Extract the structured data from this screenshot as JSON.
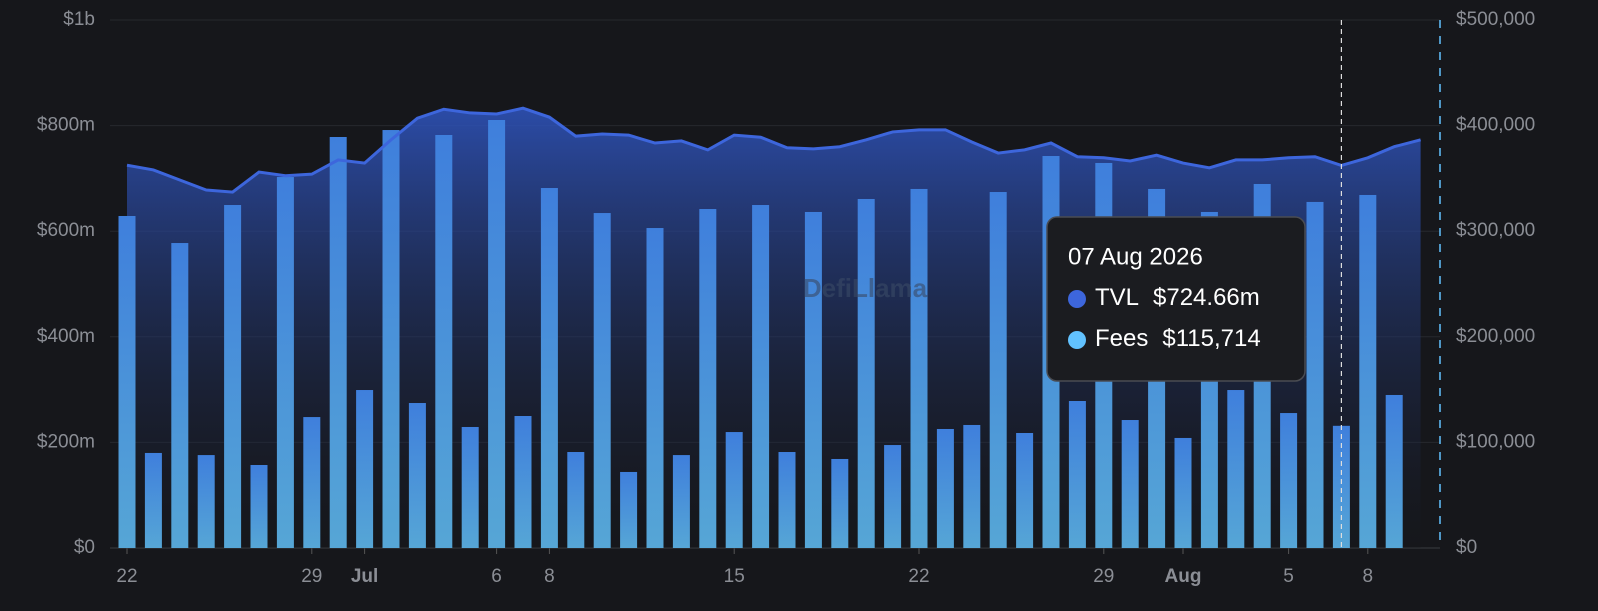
{
  "chart_data": {
    "type": "combo",
    "categories": [
      "22",
      null,
      null,
      null,
      null,
      null,
      null,
      "29",
      null,
      "Jul",
      null,
      null,
      null,
      null,
      "6",
      null,
      "8",
      null,
      null,
      null,
      null,
      null,
      null,
      "15",
      null,
      null,
      null,
      null,
      null,
      null,
      "22",
      null,
      null,
      null,
      null,
      null,
      null,
      "29",
      null,
      null,
      "Aug",
      null,
      null,
      null,
      "5",
      null,
      null,
      "8",
      null,
      null
    ],
    "series": [
      {
        "name": "TVL",
        "type": "line",
        "axis": "y",
        "color": "#3d66dc",
        "values": [
          725000000,
          716000000,
          697000000,
          678000000,
          674000000,
          712000000,
          705000000,
          708000000,
          735000000,
          729000000,
          773000000,
          814000000,
          831000000,
          824000000,
          822000000,
          833000000,
          816000000,
          780000000,
          784000000,
          782000000,
          767000000,
          771000000,
          754000000,
          782000000,
          778000000,
          758000000,
          756000000,
          760000000,
          773000000,
          788000000,
          792000000,
          792000000,
          769000000,
          748000000,
          754000000,
          767000000,
          741000000,
          739000000,
          733000000,
          744000000,
          729000000,
          720000000,
          735000000,
          735000000,
          739000000,
          741000000,
          724660000,
          739000000,
          760000000,
          773000000
        ]
      },
      {
        "name": "Fees",
        "type": "bar",
        "axis": "y2",
        "color": "#62c2ff",
        "values": [
          314400,
          90000,
          288800,
          88000,
          324800,
          78600,
          351300,
          124000,
          389200,
          149600,
          395800,
          137300,
          391100,
          114600,
          405300,
          125000,
          340900,
          90900,
          317200,
          72000,
          303000,
          88000,
          321000,
          109800,
          324800,
          90900,
          318200,
          84300,
          330500,
          97500,
          340000,
          112700,
          116500,
          337100,
          108900,
          371200,
          139200,
          364600,
          121200,
          340000,
          104200,
          318200,
          149600,
          344700,
          127800,
          327700,
          115714,
          334300,
          144900,
          null
        ]
      }
    ],
    "ylim": [
      0,
      1000000000
    ],
    "yticks": [
      {
        "value": 0,
        "label": "$0"
      },
      {
        "value": 200000000,
        "label": "$200m"
      },
      {
        "value": 400000000,
        "label": "$400m"
      },
      {
        "value": 600000000,
        "label": "$600m"
      },
      {
        "value": 800000000,
        "label": "$800m"
      },
      {
        "value": 1000000000,
        "label": "$1b"
      }
    ],
    "y2lim": [
      0,
      500000
    ],
    "y2ticks": [
      {
        "value": 0,
        "label": "$0"
      },
      {
        "value": 100000,
        "label": "$100,000"
      },
      {
        "value": 200000,
        "label": "$200,000"
      },
      {
        "value": 300000,
        "label": "$300,000"
      },
      {
        "value": 400000,
        "label": "$400,000"
      },
      {
        "value": 500000,
        "label": "$500,000"
      }
    ],
    "grid": true,
    "bold_categories": [
      "Jul",
      "Aug"
    ],
    "watermark": "DefiLlama",
    "tooltip": {
      "index": 46,
      "title": "07 Aug 2026",
      "items": [
        {
          "label": "TVL",
          "value": "$724.66m"
        },
        {
          "label": "Fees",
          "value": "$115,714"
        }
      ]
    }
  }
}
